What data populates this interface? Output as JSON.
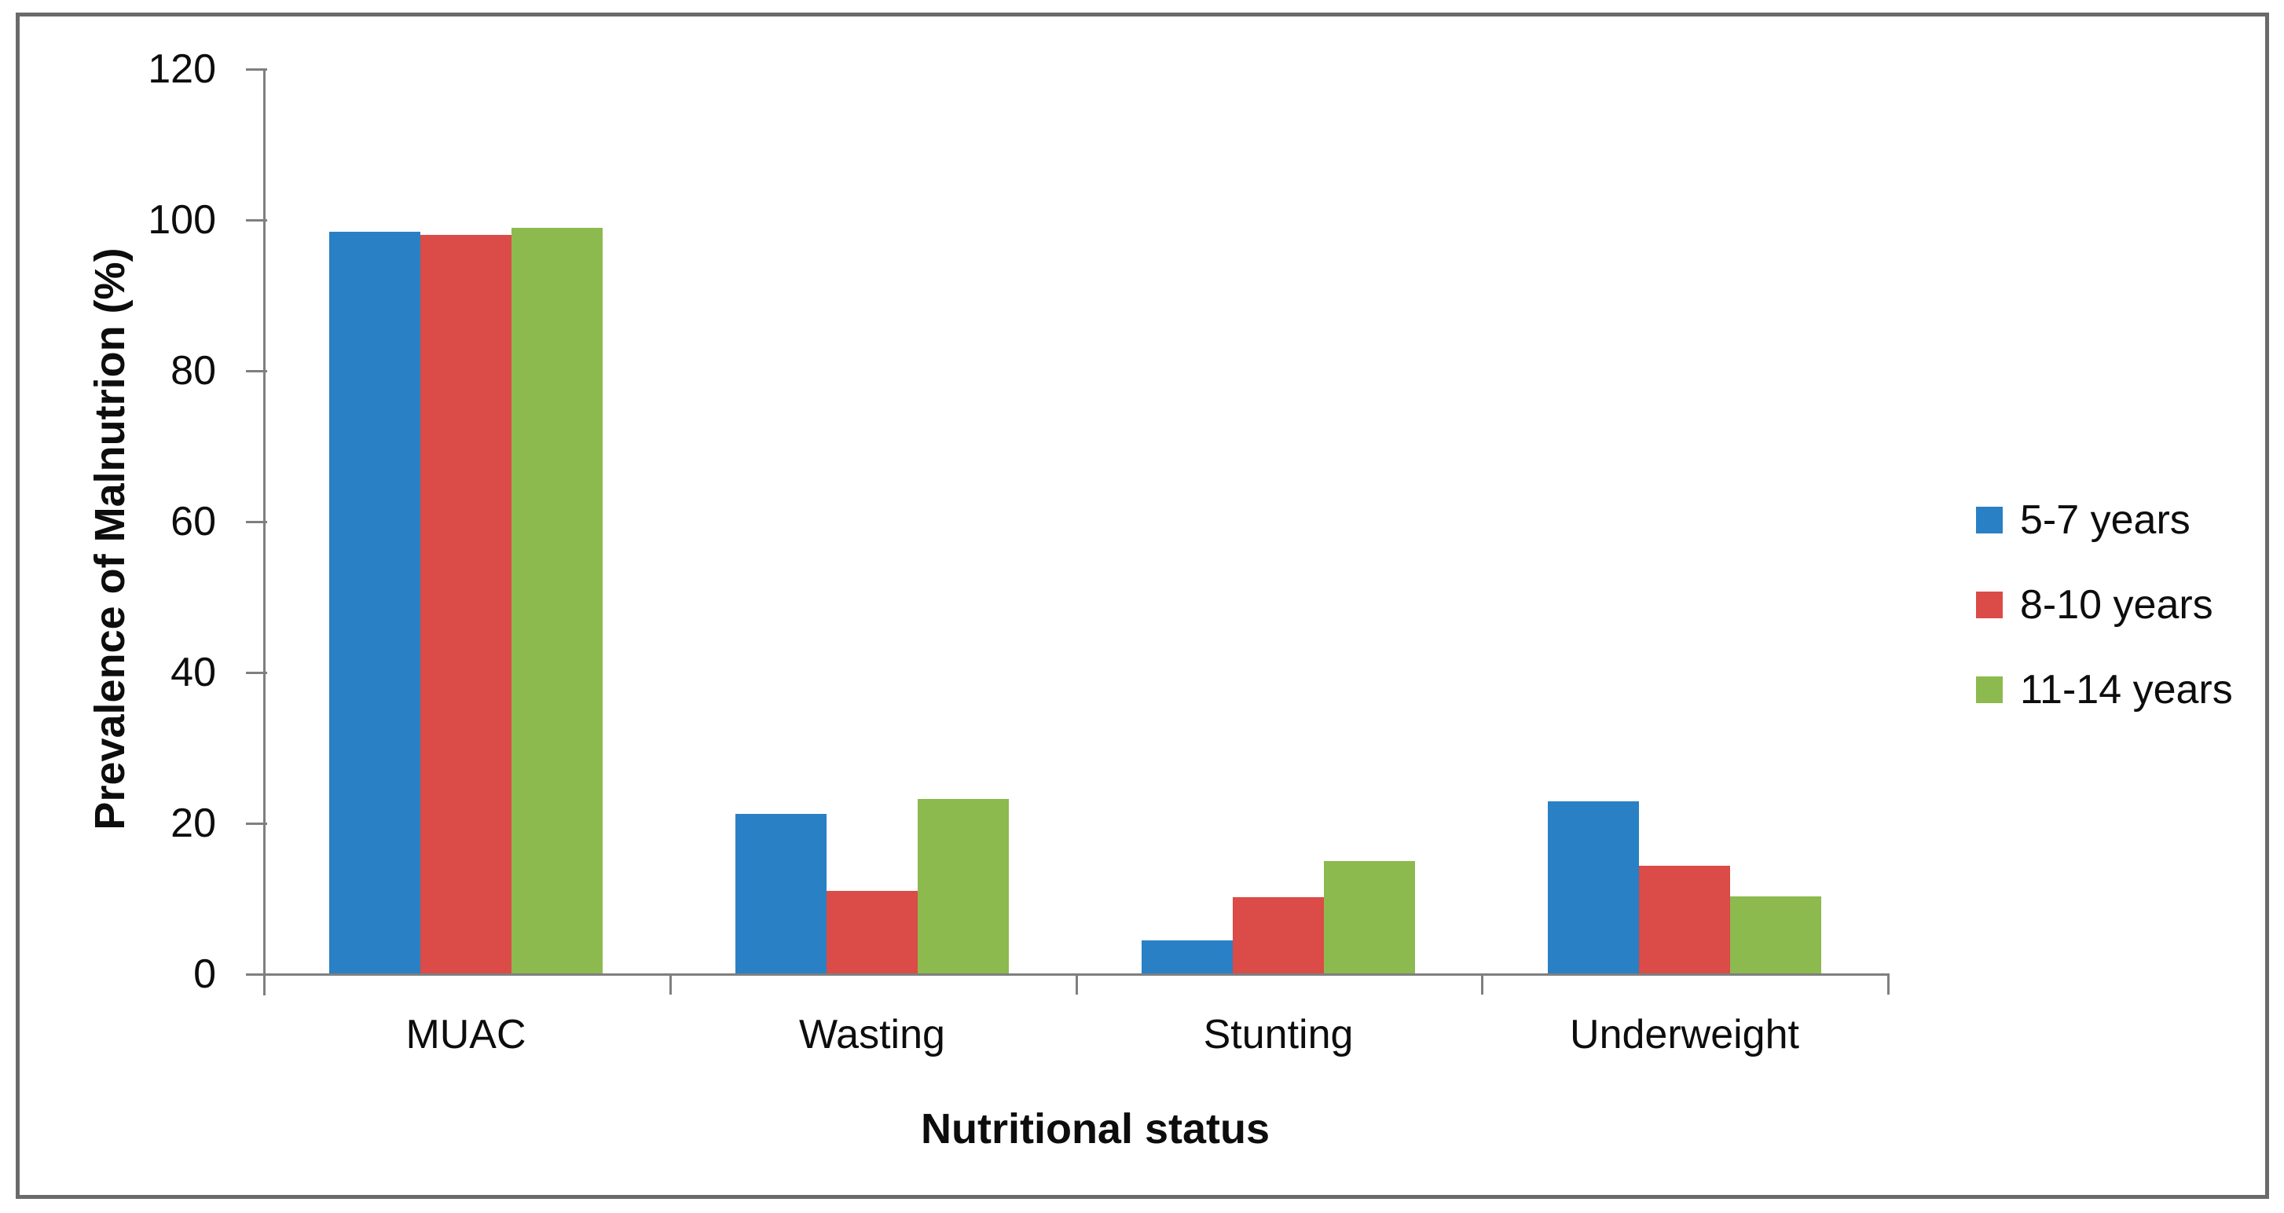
{
  "chart_data": {
    "type": "bar",
    "title": "",
    "categories": [
      "MUAC",
      "Wasting",
      "Stunting",
      "Underweight"
    ],
    "series": [
      {
        "name": "5-7 years",
        "color": "#2980C4",
        "values": [
          98.4,
          21.3,
          4.5,
          22.9
        ]
      },
      {
        "name": "8-10 years",
        "color": "#DB4B47",
        "values": [
          98.0,
          11.0,
          10.2,
          14.4
        ]
      },
      {
        "name": "11-14 years",
        "color": "#8CBA4E",
        "values": [
          99.0,
          23.2,
          15.0,
          10.3
        ]
      }
    ],
    "xlabel": "Nutritional status",
    "ylabel": "Prevalence of Malnutrion (%)",
    "ylim": [
      0,
      120
    ],
    "yticks": [
      0,
      20,
      40,
      60,
      80,
      100,
      120
    ],
    "grid": false,
    "legend_position": "right",
    "colors": {
      "axis": "#7f7f7f",
      "frame_border": "#6a6a6a",
      "text": "#0d0d0d",
      "background": "#ffffff"
    }
  }
}
